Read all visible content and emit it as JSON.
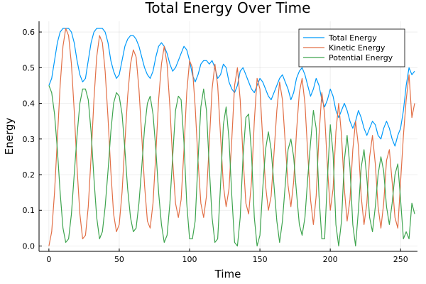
{
  "chart_data": {
    "type": "line",
    "title": "Total Energy Over Time",
    "xlabel": "Time",
    "ylabel": "Energy",
    "xlim": [
      -7,
      262
    ],
    "ylim": [
      -0.015,
      0.63
    ],
    "xticks": [
      0,
      50,
      100,
      150,
      200,
      250
    ],
    "yticks": [
      0.0,
      0.1,
      0.2,
      0.3,
      0.4,
      0.5,
      0.6
    ],
    "xtick_labels": [
      "0",
      "50",
      "100",
      "150",
      "200",
      "250"
    ],
    "ytick_labels": [
      "0.0",
      "0.1",
      "0.2",
      "0.3",
      "0.4",
      "0.5",
      "0.6"
    ],
    "grid": true,
    "legend_position": "top-right",
    "series": [
      {
        "name": "Total Energy",
        "color": "#009AFA",
        "x": [
          0,
          2,
          4,
          6,
          8,
          10,
          12,
          14,
          16,
          18,
          20,
          22,
          24,
          26,
          28,
          30,
          32,
          34,
          36,
          38,
          40,
          42,
          44,
          46,
          48,
          50,
          52,
          54,
          56,
          58,
          60,
          62,
          64,
          66,
          68,
          70,
          72,
          74,
          76,
          78,
          80,
          82,
          84,
          86,
          88,
          90,
          92,
          94,
          96,
          98,
          100,
          102,
          104,
          106,
          108,
          110,
          112,
          114,
          116,
          118,
          120,
          122,
          124,
          126,
          128,
          130,
          132,
          134,
          136,
          138,
          140,
          142,
          144,
          146,
          148,
          150,
          152,
          154,
          156,
          158,
          160,
          162,
          164,
          166,
          168,
          170,
          172,
          174,
          176,
          178,
          180,
          182,
          184,
          186,
          188,
          190,
          192,
          194,
          196,
          198,
          200,
          202,
          204,
          206,
          208,
          210,
          212,
          214,
          216,
          218,
          220,
          222,
          224,
          226,
          228,
          230,
          232,
          234,
          236,
          238,
          240,
          242,
          244,
          246,
          248,
          250,
          252,
          254,
          256,
          258,
          260
        ],
        "values": [
          0.45,
          0.47,
          0.52,
          0.57,
          0.6,
          0.61,
          0.61,
          0.61,
          0.6,
          0.57,
          0.52,
          0.48,
          0.46,
          0.47,
          0.52,
          0.57,
          0.6,
          0.61,
          0.61,
          0.61,
          0.6,
          0.57,
          0.52,
          0.49,
          0.47,
          0.48,
          0.52,
          0.56,
          0.58,
          0.59,
          0.59,
          0.58,
          0.56,
          0.53,
          0.5,
          0.48,
          0.47,
          0.49,
          0.53,
          0.56,
          0.57,
          0.56,
          0.54,
          0.51,
          0.49,
          0.5,
          0.52,
          0.54,
          0.56,
          0.55,
          0.52,
          0.48,
          0.46,
          0.48,
          0.51,
          0.52,
          0.52,
          0.51,
          0.52,
          0.5,
          0.47,
          0.48,
          0.51,
          0.5,
          0.46,
          0.44,
          0.43,
          0.45,
          0.49,
          0.5,
          0.48,
          0.46,
          0.44,
          0.43,
          0.45,
          0.47,
          0.46,
          0.44,
          0.42,
          0.41,
          0.43,
          0.45,
          0.47,
          0.48,
          0.46,
          0.44,
          0.41,
          0.43,
          0.47,
          0.49,
          0.5,
          0.48,
          0.45,
          0.42,
          0.44,
          0.47,
          0.45,
          0.41,
          0.39,
          0.41,
          0.44,
          0.42,
          0.38,
          0.36,
          0.38,
          0.4,
          0.38,
          0.35,
          0.33,
          0.35,
          0.38,
          0.36,
          0.33,
          0.31,
          0.33,
          0.35,
          0.34,
          0.31,
          0.3,
          0.33,
          0.35,
          0.33,
          0.3,
          0.28,
          0.31,
          0.33,
          0.38,
          0.45,
          0.5,
          0.48,
          0.49
        ]
      },
      {
        "name": "Kinetic Energy",
        "color": "#E26F46",
        "x": [
          0,
          2,
          4,
          6,
          8,
          10,
          12,
          14,
          16,
          18,
          20,
          22,
          24,
          26,
          28,
          30,
          32,
          34,
          36,
          38,
          40,
          42,
          44,
          46,
          48,
          50,
          52,
          54,
          56,
          58,
          60,
          62,
          64,
          66,
          68,
          70,
          72,
          74,
          76,
          78,
          80,
          82,
          84,
          86,
          88,
          90,
          92,
          94,
          96,
          98,
          100,
          102,
          104,
          106,
          108,
          110,
          112,
          114,
          116,
          118,
          120,
          122,
          124,
          126,
          128,
          130,
          132,
          134,
          136,
          138,
          140,
          142,
          144,
          146,
          148,
          150,
          152,
          154,
          156,
          158,
          160,
          162,
          164,
          166,
          168,
          170,
          172,
          174,
          176,
          178,
          180,
          182,
          184,
          186,
          188,
          190,
          192,
          194,
          196,
          198,
          200,
          202,
          204,
          206,
          208,
          210,
          212,
          214,
          216,
          218,
          220,
          222,
          224,
          226,
          228,
          230,
          232,
          234,
          236,
          238,
          240,
          242,
          244,
          246,
          248,
          250,
          252,
          254,
          256,
          258,
          260
        ],
        "values": [
          0.0,
          0.04,
          0.15,
          0.3,
          0.45,
          0.56,
          0.61,
          0.59,
          0.51,
          0.38,
          0.22,
          0.09,
          0.02,
          0.03,
          0.11,
          0.25,
          0.41,
          0.53,
          0.59,
          0.57,
          0.49,
          0.36,
          0.21,
          0.09,
          0.04,
          0.06,
          0.15,
          0.29,
          0.42,
          0.51,
          0.55,
          0.53,
          0.44,
          0.31,
          0.17,
          0.07,
          0.05,
          0.12,
          0.26,
          0.41,
          0.51,
          0.56,
          0.51,
          0.39,
          0.24,
          0.12,
          0.08,
          0.13,
          0.27,
          0.43,
          0.52,
          0.5,
          0.39,
          0.24,
          0.12,
          0.08,
          0.14,
          0.29,
          0.44,
          0.51,
          0.45,
          0.31,
          0.17,
          0.11,
          0.16,
          0.3,
          0.45,
          0.5,
          0.41,
          0.25,
          0.12,
          0.09,
          0.18,
          0.35,
          0.47,
          0.44,
          0.3,
          0.17,
          0.1,
          0.14,
          0.26,
          0.38,
          0.46,
          0.41,
          0.29,
          0.17,
          0.11,
          0.18,
          0.32,
          0.43,
          0.47,
          0.4,
          0.26,
          0.13,
          0.06,
          0.14,
          0.31,
          0.43,
          0.37,
          0.22,
          0.1,
          0.16,
          0.32,
          0.4,
          0.31,
          0.16,
          0.07,
          0.13,
          0.27,
          0.35,
          0.28,
          0.14,
          0.06,
          0.12,
          0.25,
          0.31,
          0.23,
          0.11,
          0.05,
          0.12,
          0.24,
          0.27,
          0.18,
          0.08,
          0.05,
          0.18,
          0.31,
          0.41,
          0.48,
          0.36,
          0.4
        ]
      },
      {
        "name": "Potential Energy",
        "color": "#3EA44E",
        "x": [
          0,
          2,
          4,
          6,
          8,
          10,
          12,
          14,
          16,
          18,
          20,
          22,
          24,
          26,
          28,
          30,
          32,
          34,
          36,
          38,
          40,
          42,
          44,
          46,
          48,
          50,
          52,
          54,
          56,
          58,
          60,
          62,
          64,
          66,
          68,
          70,
          72,
          74,
          76,
          78,
          80,
          82,
          84,
          86,
          88,
          90,
          92,
          94,
          96,
          98,
          100,
          102,
          104,
          106,
          108,
          110,
          112,
          114,
          116,
          118,
          120,
          122,
          124,
          126,
          128,
          130,
          132,
          134,
          136,
          138,
          140,
          142,
          144,
          146,
          148,
          150,
          152,
          154,
          156,
          158,
          160,
          162,
          164,
          166,
          168,
          170,
          172,
          174,
          176,
          178,
          180,
          182,
          184,
          186,
          188,
          190,
          192,
          194,
          196,
          198,
          200,
          202,
          204,
          206,
          208,
          210,
          212,
          214,
          216,
          218,
          220,
          222,
          224,
          226,
          228,
          230,
          232,
          234,
          236,
          238,
          240,
          242,
          244,
          246,
          248,
          250,
          252,
          254,
          256,
          258,
          260
        ],
        "values": [
          0.45,
          0.43,
          0.37,
          0.27,
          0.15,
          0.05,
          0.01,
          0.02,
          0.09,
          0.2,
          0.31,
          0.4,
          0.44,
          0.44,
          0.41,
          0.32,
          0.19,
          0.08,
          0.02,
          0.04,
          0.11,
          0.21,
          0.32,
          0.4,
          0.43,
          0.42,
          0.37,
          0.27,
          0.16,
          0.08,
          0.04,
          0.05,
          0.12,
          0.22,
          0.33,
          0.4,
          0.42,
          0.37,
          0.27,
          0.15,
          0.06,
          0.01,
          0.03,
          0.12,
          0.25,
          0.38,
          0.42,
          0.41,
          0.29,
          0.12,
          0.02,
          0.02,
          0.07,
          0.24,
          0.39,
          0.44,
          0.38,
          0.22,
          0.08,
          0.01,
          0.02,
          0.17,
          0.34,
          0.39,
          0.3,
          0.14,
          0.01,
          0.0,
          0.08,
          0.25,
          0.36,
          0.37,
          0.26,
          0.08,
          0.0,
          0.03,
          0.16,
          0.27,
          0.32,
          0.27,
          0.17,
          0.07,
          0.01,
          0.07,
          0.17,
          0.27,
          0.3,
          0.25,
          0.15,
          0.06,
          0.03,
          0.08,
          0.19,
          0.29,
          0.38,
          0.33,
          0.14,
          0.02,
          0.02,
          0.19,
          0.34,
          0.26,
          0.06,
          0.0,
          0.07,
          0.24,
          0.31,
          0.22,
          0.06,
          0.0,
          0.1,
          0.22,
          0.27,
          0.19,
          0.08,
          0.04,
          0.11,
          0.2,
          0.25,
          0.21,
          0.11,
          0.06,
          0.12,
          0.2,
          0.23,
          0.13,
          0.02,
          0.04,
          0.02,
          0.12,
          0.09
        ]
      }
    ]
  }
}
